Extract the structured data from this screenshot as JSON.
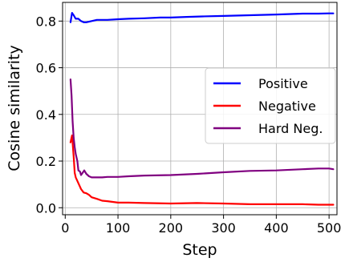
{
  "chart_data": {
    "type": "line",
    "xlabel": "Step",
    "ylabel": "Cosine similarity",
    "xlim": [
      -5,
      515
    ],
    "ylim": [
      -0.03,
      0.88
    ],
    "xticks": [
      0,
      100,
      200,
      300,
      400,
      500
    ],
    "yticks": [
      0.0,
      0.2,
      0.4,
      0.6,
      0.8
    ],
    "xtick_labels": [
      "0",
      "100",
      "200",
      "300",
      "400",
      "500"
    ],
    "ytick_labels": [
      "0.0",
      "0.2",
      "0.4",
      "0.6",
      "0.8"
    ],
    "grid": true,
    "legend_position": "center-right",
    "series": [
      {
        "name": "Positive",
        "color": "#0000ff",
        "x": [
          10,
          13,
          16,
          20,
          25,
          30,
          35,
          40,
          50,
          60,
          70,
          80,
          100,
          120,
          150,
          180,
          200,
          230,
          260,
          300,
          350,
          400,
          450,
          480,
          500,
          508
        ],
        "y": [
          0.795,
          0.835,
          0.825,
          0.81,
          0.81,
          0.8,
          0.795,
          0.795,
          0.8,
          0.805,
          0.805,
          0.805,
          0.808,
          0.81,
          0.812,
          0.815,
          0.815,
          0.818,
          0.82,
          0.822,
          0.825,
          0.828,
          0.832,
          0.832,
          0.833,
          0.833
        ]
      },
      {
        "name": "Negative",
        "color": "#ff0000",
        "x": [
          10,
          13,
          16,
          18,
          20,
          23,
          25,
          28,
          30,
          35,
          40,
          45,
          50,
          60,
          70,
          80,
          90,
          100,
          120,
          150,
          200,
          250,
          300,
          350,
          400,
          450,
          480,
          508
        ],
        "y": [
          0.28,
          0.31,
          0.22,
          0.15,
          0.13,
          0.115,
          0.105,
          0.09,
          0.08,
          0.065,
          0.062,
          0.055,
          0.045,
          0.038,
          0.03,
          0.028,
          0.025,
          0.022,
          0.022,
          0.02,
          0.018,
          0.02,
          0.018,
          0.015,
          0.015,
          0.015,
          0.013,
          0.013
        ]
      },
      {
        "name": "Hard Neg.",
        "color": "#800080",
        "x": [
          10,
          12,
          14,
          16,
          18,
          20,
          23,
          25,
          28,
          30,
          33,
          36,
          40,
          45,
          50,
          60,
          70,
          80,
          100,
          120,
          150,
          200,
          250,
          300,
          350,
          400,
          450,
          480,
          500,
          508
        ],
        "y": [
          0.55,
          0.48,
          0.37,
          0.3,
          0.26,
          0.23,
          0.2,
          0.16,
          0.155,
          0.14,
          0.15,
          0.16,
          0.145,
          0.135,
          0.13,
          0.13,
          0.13,
          0.132,
          0.132,
          0.135,
          0.138,
          0.14,
          0.145,
          0.152,
          0.158,
          0.16,
          0.165,
          0.168,
          0.168,
          0.165
        ]
      }
    ]
  }
}
